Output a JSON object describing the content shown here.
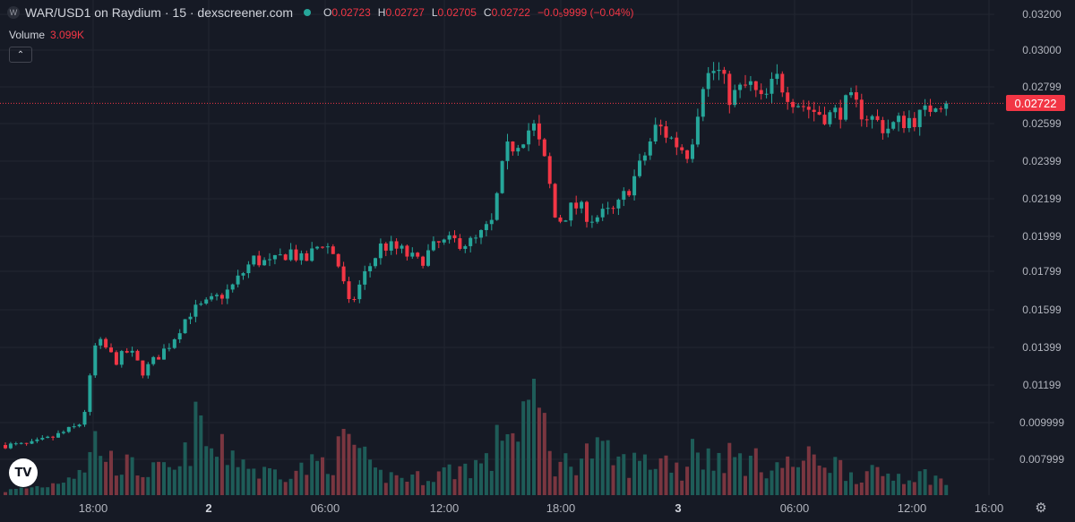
{
  "legend": {
    "symbol_icon": "W",
    "title": "WAR/USD1 on Raydium · 15 · dexscreener.com",
    "open_label": "O",
    "open": "0.02723",
    "high_label": "H",
    "high": "0.02727",
    "low_label": "L",
    "low": "0.02705",
    "close_label": "C",
    "close": "0.02722",
    "change": "−0.0₅9999 (−0.04%)"
  },
  "volume": {
    "label": "Volume",
    "value": "3.099K"
  },
  "last_price": "0.02722",
  "colors": {
    "background": "#161a25",
    "grid": "#222631",
    "up": "#26a69a",
    "down": "#f23645",
    "vol_up": "#1e5c58",
    "vol_down": "#7a3640",
    "text": "#b2b5be"
  },
  "icons": {
    "logo": "tradingview-logo-icon",
    "settings": "gear-icon",
    "collapse": "chevron-up-icon"
  },
  "chart_data": {
    "type": "candlestick",
    "x_ticks": [
      "18:00",
      "2",
      "06:00",
      "12:00",
      "18:00",
      "3",
      "06:00",
      "12:00",
      "16:00"
    ],
    "y_ticks": [
      "0.03200",
      "0.03000",
      "0.02799",
      "0.02599",
      "0.02399",
      "0.02199",
      "0.01999",
      "0.01799",
      "0.01599",
      "0.01399",
      "0.01199",
      "0.009999",
      "0.007999"
    ],
    "ylim": [
      0.00725,
      0.0322
    ],
    "current_price": 0.02722,
    "candle_count": 179,
    "close_path": [
      [
        0,
        0.0081
      ],
      [
        5,
        0.0081
      ],
      [
        10,
        0.0085
      ],
      [
        16,
        0.0092
      ],
      [
        18,
        0.0105
      ],
      [
        19,
        0.0135
      ],
      [
        21,
        0.0138
      ],
      [
        24,
        0.0128
      ],
      [
        27,
        0.0134
      ],
      [
        30,
        0.0122
      ],
      [
        33,
        0.013
      ],
      [
        36,
        0.0138
      ],
      [
        40,
        0.0155
      ],
      [
        44,
        0.016
      ],
      [
        49,
        0.0168
      ],
      [
        54,
        0.0185
      ],
      [
        58,
        0.0182
      ],
      [
        62,
        0.019
      ],
      [
        65,
        0.0183
      ],
      [
        69,
        0.0195
      ],
      [
        72,
        0.0187
      ],
      [
        75,
        0.0158
      ],
      [
        78,
        0.0175
      ],
      [
        82,
        0.0193
      ],
      [
        86,
        0.019
      ],
      [
        90,
        0.0183
      ],
      [
        94,
        0.0193
      ],
      [
        98,
        0.0195
      ],
      [
        102,
        0.0194
      ],
      [
        106,
        0.0205
      ],
      [
        109,
        0.0245
      ],
      [
        112,
        0.0252
      ],
      [
        115,
        0.026
      ],
      [
        118,
        0.0235
      ],
      [
        120,
        0.0205
      ],
      [
        124,
        0.0215
      ],
      [
        128,
        0.0208
      ],
      [
        133,
        0.0212
      ],
      [
        138,
        0.0235
      ],
      [
        142,
        0.026
      ],
      [
        146,
        0.025
      ],
      [
        149,
        0.0244
      ],
      [
        152,
        0.0285
      ],
      [
        155,
        0.0292
      ],
      [
        158,
        0.0275
      ],
      [
        162,
        0.0283
      ],
      [
        165,
        0.0272
      ],
      [
        168,
        0.0286
      ],
      [
        172,
        0.0274
      ],
      [
        176,
        0.0268
      ],
      [
        180,
        0.0265
      ],
      [
        184,
        0.0273
      ],
      [
        188,
        0.0265
      ],
      [
        192,
        0.0258
      ],
      [
        196,
        0.0263
      ],
      [
        200,
        0.0265
      ],
      [
        203,
        0.0275
      ],
      [
        205,
        0.02722
      ]
    ],
    "volume_path": [
      [
        0,
        60
      ],
      [
        10,
        150
      ],
      [
        18,
        470
      ],
      [
        20,
        880
      ],
      [
        22,
        520
      ],
      [
        30,
        350
      ],
      [
        38,
        350
      ],
      [
        42,
        1050
      ],
      [
        45,
        600
      ],
      [
        50,
        620
      ],
      [
        55,
        320
      ],
      [
        65,
        380
      ],
      [
        72,
        560
      ],
      [
        75,
        850
      ],
      [
        80,
        300
      ],
      [
        90,
        250
      ],
      [
        106,
        500
      ],
      [
        108,
        900
      ],
      [
        109,
        1380
      ],
      [
        110,
        760
      ],
      [
        112,
        1100
      ],
      [
        114,
        1380
      ],
      [
        117,
        1100
      ],
      [
        120,
        400
      ],
      [
        128,
        650
      ],
      [
        135,
        450
      ],
      [
        145,
        520
      ],
      [
        148,
        280
      ],
      [
        150,
        950
      ],
      [
        152,
        520
      ],
      [
        156,
        580
      ],
      [
        165,
        450
      ],
      [
        170,
        420
      ],
      [
        178,
        550
      ],
      [
        185,
        300
      ],
      [
        195,
        300
      ],
      [
        203,
        280
      ],
      [
        205,
        120
      ]
    ]
  }
}
